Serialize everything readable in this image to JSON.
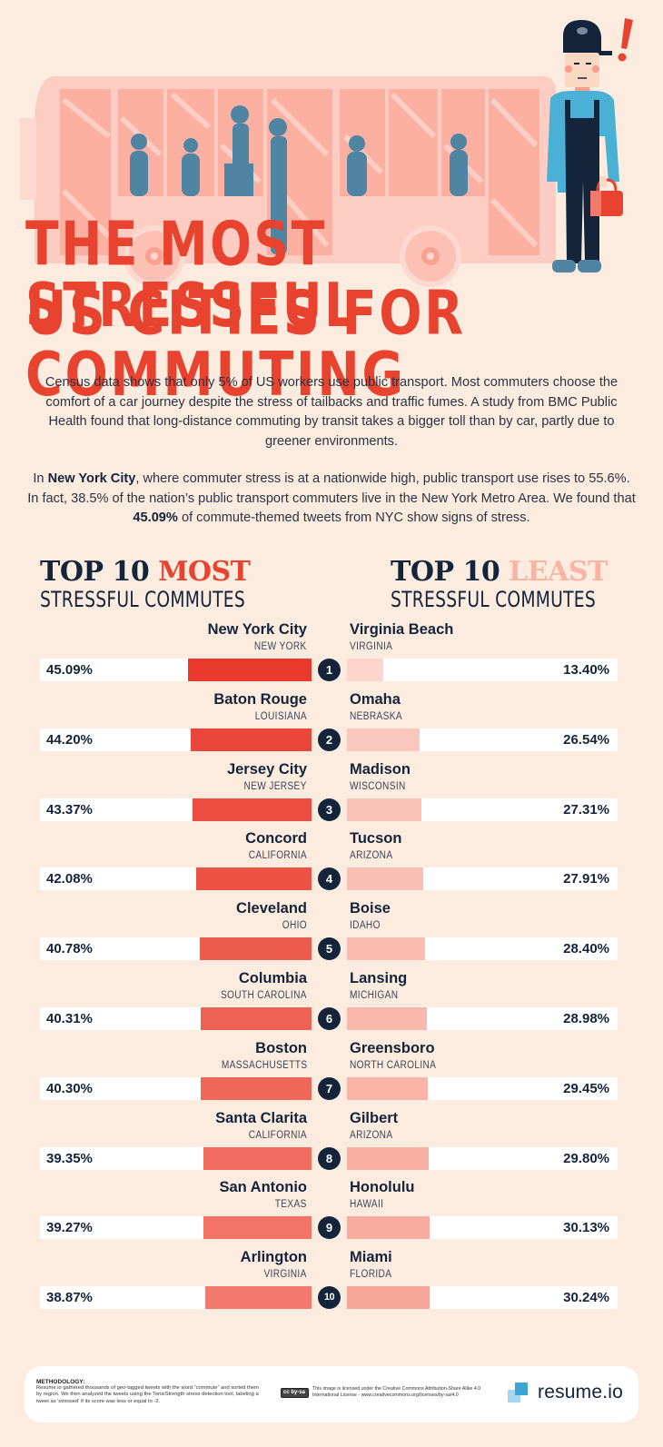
{
  "title": {
    "line1": "THE MOST STRESSFUL",
    "line2": "US CITIES FOR COMMUTING"
  },
  "illustration": {
    "bus_icon": "bus-with-passengers",
    "commuter_icon": "stressed-commuter-with-lunchbox",
    "exclamation": "!"
  },
  "intro": {
    "p1": "Census data shows that only 5% of US workers use public transport. Most commuters choose the comfort of a car journey despite the stress of tailbacks and traffic fumes. A study from BMC Public Health found that long-distance commuting by transit takes a bigger toll than by car, partly due to greener environments.",
    "p2_pre": "In ",
    "p2_bold1": "New York City",
    "p2_mid": ", where commuter stress is at a nationwide high, public transport use rises to 55.6%. In fact, 38.5% of the nation’s public transport commuters live in the New York Metro Area. We found that ",
    "p2_bold2": "45.09%",
    "p2_post": " of commute-themed tweets from NYC show signs of stress."
  },
  "headings": {
    "left_top": "TOP 10 ",
    "left_accent": "MOST",
    "left_sub": "STRESSFUL COMMUTES",
    "right_top": "TOP 10 ",
    "right_accent": "LEAST",
    "right_sub": "STRESSFUL COMMUTES"
  },
  "colors": {
    "background": "#fcece0",
    "navy": "#14243a",
    "red": "#e8432f",
    "light_pink": "#f9b4a4",
    "track": "#ffffff"
  },
  "rows": [
    {
      "rank": "1",
      "most_city": "New York City",
      "most_state": "NEW YORK",
      "most_value": "45.09%",
      "least_city": "Virginia Beach",
      "least_state": "VIRGINIA",
      "least_value": "13.40%"
    },
    {
      "rank": "2",
      "most_city": "Baton Rouge",
      "most_state": "LOUISIANA",
      "most_value": "44.20%",
      "least_city": "Omaha",
      "least_state": "NEBRASKA",
      "least_value": "26.54%"
    },
    {
      "rank": "3",
      "most_city": "Jersey City",
      "most_state": "NEW JERSEY",
      "most_value": "43.37%",
      "least_city": "Madison",
      "least_state": "WISCONSIN",
      "least_value": "27.31%"
    },
    {
      "rank": "4",
      "most_city": "Concord",
      "most_state": "CALIFORNIA",
      "most_value": "42.08%",
      "least_city": "Tucson",
      "least_state": "ARIZONA",
      "least_value": "27.91%"
    },
    {
      "rank": "5",
      "most_city": "Cleveland",
      "most_state": "OHIO",
      "most_value": "40.78%",
      "least_city": "Boise",
      "least_state": "IDAHO",
      "least_value": "28.40%"
    },
    {
      "rank": "6",
      "most_city": "Columbia",
      "most_state": "SOUTH CAROLINA",
      "most_value": "40.31%",
      "least_city": "Lansing",
      "least_state": "MICHIGAN",
      "least_value": "28.98%"
    },
    {
      "rank": "7",
      "most_city": "Boston",
      "most_state": "MASSACHUSETTS",
      "most_value": "40.30%",
      "least_city": "Greensboro",
      "least_state": "NORTH CAROLINA",
      "least_value": "29.45%"
    },
    {
      "rank": "8",
      "most_city": "Santa Clarita",
      "most_state": "CALIFORNIA",
      "most_value": "39.35%",
      "least_city": "Gilbert",
      "least_state": "ARIZONA",
      "least_value": "29.80%"
    },
    {
      "rank": "9",
      "most_city": "San Antonio",
      "most_state": "TEXAS",
      "most_value": "39.27%",
      "least_city": "Honolulu",
      "least_state": "HAWAII",
      "least_value": "30.13%"
    },
    {
      "rank": "10",
      "most_city": "Arlington",
      "most_state": "VIRGINIA",
      "most_value": "38.87%",
      "least_city": "Miami",
      "least_state": "FLORIDA",
      "least_value": "30.24%"
    }
  ],
  "chart_data": [
    {
      "type": "bar",
      "title": "TOP 10 MOST STRESSFUL COMMUTES",
      "orientation": "horizontal",
      "categories": [
        "New York City, NEW YORK",
        "Baton Rouge, LOUISIANA",
        "Jersey City, NEW JERSEY",
        "Concord, CALIFORNIA",
        "Cleveland, OHIO",
        "Columbia, SOUTH CAROLINA",
        "Boston, MASSACHUSETTS",
        "Santa Clarita, CALIFORNIA",
        "San Antonio, TEXAS",
        "Arlington, VIRGINIA"
      ],
      "values": [
        45.09,
        44.2,
        43.37,
        42.08,
        40.78,
        40.31,
        40.3,
        39.35,
        39.27,
        38.87
      ],
      "unit": "% of commute tweets showing stress",
      "xlabel": "",
      "ylabel": "",
      "grid": false,
      "legend": "none"
    },
    {
      "type": "bar",
      "title": "TOP 10 LEAST STRESSFUL COMMUTES",
      "orientation": "horizontal",
      "categories": [
        "Virginia Beach, VIRGINIA",
        "Omaha, NEBRASKA",
        "Madison, WISCONSIN",
        "Tucson, ARIZONA",
        "Boise, IDAHO",
        "Lansing, MICHIGAN",
        "Greensboro, NORTH CAROLINA",
        "Gilbert, ARIZONA",
        "Honolulu, HAWAII",
        "Miami, FLORIDA"
      ],
      "values": [
        13.4,
        26.54,
        27.31,
        27.91,
        28.4,
        28.98,
        29.45,
        29.8,
        30.13,
        30.24
      ],
      "unit": "% of commute tweets showing stress",
      "xlabel": "",
      "ylabel": "",
      "grid": false,
      "legend": "none"
    }
  ],
  "footer": {
    "methodology_heading": "METHODOLOGY:",
    "methodology_text": "Resume.io gathered thousands of geo-tagged tweets with the word “commute” and sorted them by region. We then analyzed the tweets using the TensiStrength stress detection tool, labeling a tweet as 'stressed' if its score was less or equal to -2.",
    "cc_badge": "cc by-sa",
    "license_text": "This image is licensed under the Creative Commons Attribution-Share Alike 4.0 International License - www.creativecommons.org/licenses/by-sa/4.0",
    "brand": "resume.io"
  }
}
